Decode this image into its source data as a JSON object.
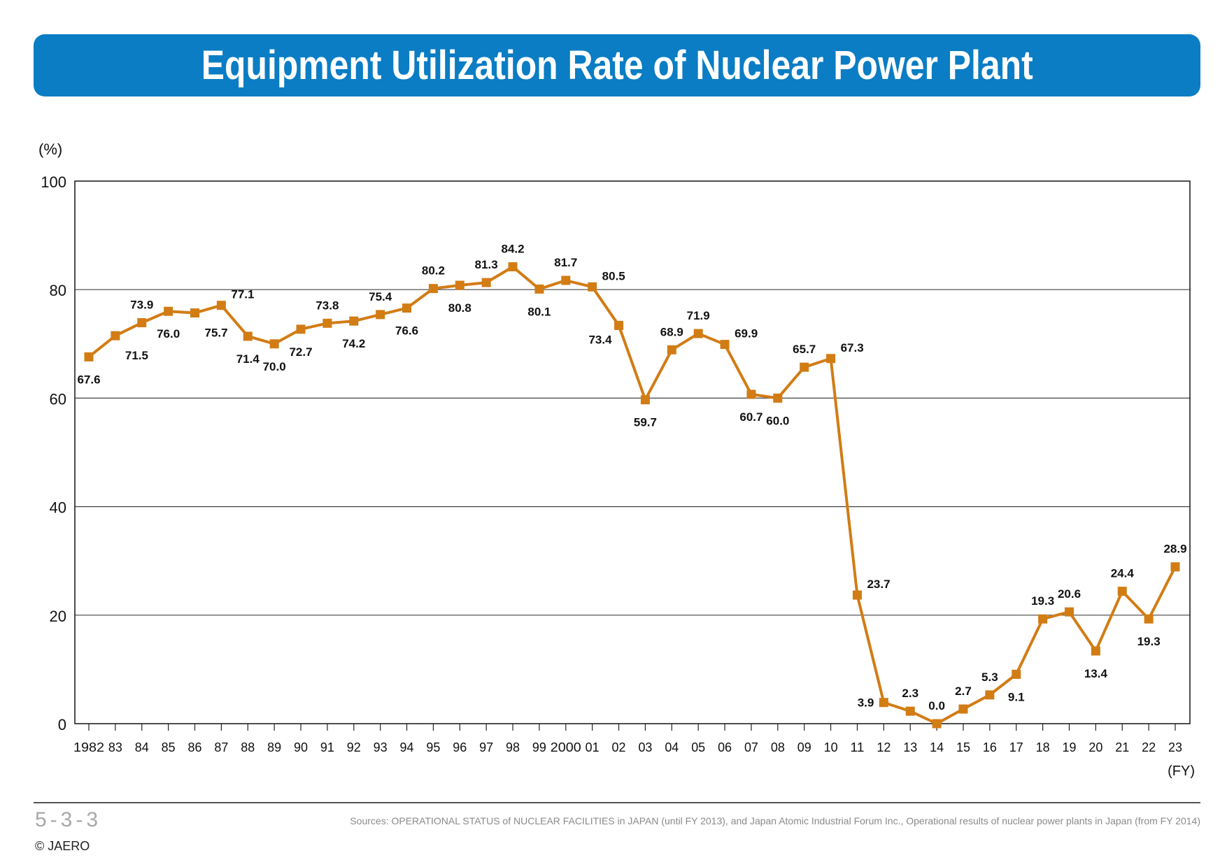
{
  "header": {
    "title": "Equipment Utilization Rate of Nuclear Power Plant"
  },
  "chart_data": {
    "type": "line",
    "y_unit": "(%)",
    "x_unit": "(FY)",
    "ylim": [
      0,
      100
    ],
    "yticks": [
      0,
      20,
      40,
      60,
      80,
      100
    ],
    "grid": "horizontal",
    "line_color": "#d27c14",
    "categories": [
      "1982",
      "83",
      "84",
      "85",
      "86",
      "87",
      "88",
      "89",
      "90",
      "91",
      "92",
      "93",
      "94",
      "95",
      "96",
      "97",
      "98",
      "99",
      "2000",
      "01",
      "02",
      "03",
      "04",
      "05",
      "06",
      "07",
      "08",
      "09",
      "10",
      "11",
      "12",
      "13",
      "14",
      "15",
      "16",
      "17",
      "18",
      "19",
      "20",
      "21",
      "22",
      "23"
    ],
    "values": [
      67.6,
      71.5,
      73.9,
      76.0,
      75.7,
      77.1,
      71.4,
      70.0,
      72.7,
      73.8,
      74.2,
      75.4,
      76.6,
      80.2,
      80.8,
      81.3,
      84.2,
      80.1,
      81.7,
      80.5,
      73.4,
      59.7,
      68.9,
      71.9,
      69.9,
      60.7,
      60.0,
      65.7,
      67.3,
      23.7,
      3.9,
      2.3,
      0.0,
      2.7,
      5.3,
      9.1,
      19.3,
      20.6,
      13.4,
      24.4,
      19.3,
      28.9
    ],
    "labels": [
      "67.6",
      "71.5",
      "73.9",
      "76.0",
      "75.7",
      "77.1",
      "71.4",
      "70.0",
      "72.7",
      "73.8",
      "74.2",
      "75.4",
      "76.6",
      "80.2",
      "80.8",
      "81.3",
      "84.2",
      "80.1",
      "81.7",
      "80.5",
      "73.4",
      "59.7",
      "68.9",
      "71.9",
      "69.9",
      "60.7",
      "60.0",
      "65.7",
      "67.3",
      "23.7",
      "3.9",
      "2.3",
      "0.0",
      "2.7",
      "5.3",
      "9.1",
      "19.3",
      "20.6",
      "13.4",
      "24.4",
      "19.3",
      "28.9"
    ],
    "label_positions": [
      "below",
      "below-right",
      "above",
      "below",
      "below-right",
      "right",
      "below",
      "below",
      "below",
      "above",
      "below",
      "above",
      "below",
      "above",
      "below",
      "above",
      "above",
      "below",
      "above",
      "right",
      "below-left",
      "below",
      "above",
      "above",
      "right",
      "below",
      "below",
      "above",
      "right",
      "right",
      "left",
      "above",
      "above",
      "above",
      "above",
      "below",
      "above",
      "above",
      "below",
      "above",
      "below",
      "above"
    ]
  },
  "footer": {
    "page_number": "5-3-3",
    "copyright": "© JAERO",
    "sources": "Sources: OPERATIONAL STATUS of NUCLEAR FACILITIES in JAPAN (until FY 2013), and Japan Atomic Industrial Forum Inc., Operational results of nuclear power plants in Japan (from FY 2014)"
  }
}
